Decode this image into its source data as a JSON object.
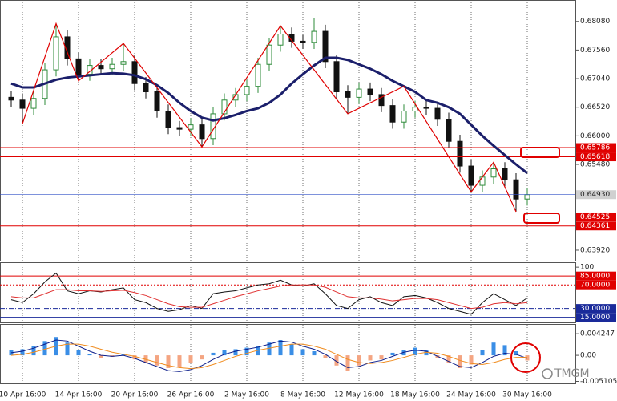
{
  "chart_data": [
    {
      "type": "candlestick",
      "categories": [
        null,
        "10 Apr 16:00",
        null,
        null,
        null,
        null,
        "14 Apr 16:00",
        null,
        null,
        null,
        null,
        "20 Apr 16:00",
        null,
        null,
        null,
        null,
        "26 Apr 16:00",
        null,
        null,
        null,
        null,
        "2 May 16:00",
        null,
        null,
        null,
        null,
        "8 May 16:00",
        null,
        null,
        null,
        null,
        "12 May 16:00",
        null,
        null,
        null,
        null,
        "18 May 16:00",
        null,
        null,
        null,
        null,
        "24 May 16:00",
        null,
        null,
        null,
        null,
        "30 May 16:00"
      ],
      "open": [
        0.667,
        0.6665,
        0.665,
        0.6668,
        0.672,
        0.678,
        0.674,
        0.6712,
        0.6728,
        0.6722,
        0.673,
        0.6735,
        0.6695,
        0.668,
        0.6645,
        0.6615,
        0.6612,
        0.662,
        0.6595,
        0.664,
        0.6665,
        0.6675,
        0.669,
        0.673,
        0.6765,
        0.6785,
        0.6772,
        0.677,
        0.679,
        0.6735,
        0.668,
        0.667,
        0.6685,
        0.6675,
        0.6655,
        0.6625,
        0.6645,
        0.6652,
        0.665,
        0.663,
        0.659,
        0.6545,
        0.651,
        0.6525,
        0.654,
        0.652,
        0.6485
      ],
      "high": [
        0.6682,
        0.6677,
        0.668,
        0.6732,
        0.6804,
        0.6792,
        0.6752,
        0.674,
        0.674,
        0.6742,
        0.6768,
        0.6747,
        0.6707,
        0.6692,
        0.6657,
        0.6627,
        0.6632,
        0.6632,
        0.6652,
        0.6677,
        0.6687,
        0.6702,
        0.6742,
        0.6777,
        0.68,
        0.6797,
        0.6784,
        0.6814,
        0.6802,
        0.6747,
        0.6692,
        0.6697,
        0.6697,
        0.6687,
        0.6667,
        0.6657,
        0.6664,
        0.6664,
        0.6662,
        0.6642,
        0.6602,
        0.6557,
        0.6537,
        0.6552,
        0.6552,
        0.6532,
        0.6505
      ],
      "low": [
        0.6653,
        0.6622,
        0.6638,
        0.6656,
        0.6708,
        0.6728,
        0.67,
        0.67,
        0.671,
        0.671,
        0.6718,
        0.6683,
        0.6668,
        0.6633,
        0.6603,
        0.66,
        0.66,
        0.658,
        0.6583,
        0.6628,
        0.6653,
        0.6663,
        0.6678,
        0.6718,
        0.6753,
        0.676,
        0.6758,
        0.6758,
        0.6723,
        0.6668,
        0.664,
        0.6658,
        0.6663,
        0.6643,
        0.6613,
        0.6613,
        0.6633,
        0.6638,
        0.6618,
        0.6578,
        0.6533,
        0.6498,
        0.6498,
        0.6513,
        0.6508,
        0.6462,
        0.6473
      ],
      "close": [
        0.6665,
        0.665,
        0.6668,
        0.672,
        0.678,
        0.674,
        0.6712,
        0.6728,
        0.6722,
        0.673,
        0.6735,
        0.6695,
        0.668,
        0.6645,
        0.6615,
        0.6612,
        0.662,
        0.6595,
        0.664,
        0.6665,
        0.6675,
        0.669,
        0.673,
        0.6765,
        0.6785,
        0.6772,
        0.677,
        0.679,
        0.6735,
        0.668,
        0.667,
        0.6685,
        0.6675,
        0.6655,
        0.6625,
        0.6645,
        0.6652,
        0.665,
        0.663,
        0.659,
        0.6545,
        0.651,
        0.6525,
        0.654,
        0.652,
        0.6485,
        0.6493
      ],
      "up_color": "#2e8b3a",
      "down_color": "#111111",
      "series": [
        {
          "color": "#1b1f6b",
          "values": [
            0.6695,
            0.6688,
            0.6688,
            0.6695,
            0.6702,
            0.6706,
            0.6708,
            0.671,
            0.6712,
            0.6714,
            0.6713,
            0.671,
            0.6703,
            0.6692,
            0.6678,
            0.666,
            0.6645,
            0.6633,
            0.6628,
            0.6632,
            0.6638,
            0.6645,
            0.665,
            0.666,
            0.6675,
            0.6695,
            0.6712,
            0.6728,
            0.6742,
            0.6742,
            0.6738,
            0.673,
            0.6722,
            0.6712,
            0.67,
            0.669,
            0.668,
            0.6665,
            0.666,
            0.6652,
            0.664,
            0.662,
            0.66,
            0.6582,
            0.6565,
            0.6548,
            0.6532
          ]
        }
      ],
      "zigzag": {
        "color": "#e00000",
        "x": [
          1,
          4,
          6,
          10,
          17,
          24,
          30,
          35,
          41,
          43,
          45
        ],
        "values": [
          0.6622,
          0.6804,
          0.67,
          0.6768,
          0.658,
          0.68,
          0.664,
          0.669,
          0.6498,
          0.6552,
          0.6462
        ]
      },
      "levels": [
        {
          "value": 0.65786,
          "color": "#e00000"
        },
        {
          "value": 0.65618,
          "color": "#e00000"
        },
        {
          "value": 0.64525,
          "color": "#e00000"
        },
        {
          "value": 0.64361,
          "color": "#e00000"
        }
      ],
      "current": {
        "value": 0.6493,
        "label": "0.64930",
        "color": "#3050c8"
      },
      "ylim": [
        0.6373,
        0.6847
      ],
      "yticks": [
        {
          "value": 0.6808,
          "label": "0.68080"
        },
        {
          "value": 0.6756,
          "label": "0.67560"
        },
        {
          "value": 0.6704,
          "label": "0.67040"
        },
        {
          "value": 0.6652,
          "label": "0.66520"
        },
        {
          "value": 0.66,
          "label": "0.66000"
        },
        {
          "value": 0.6548,
          "label": "0.65480"
        },
        {
          "value": 0.6392,
          "label": "0.63920"
        }
      ],
      "vgrid": true
    },
    {
      "type": "line",
      "series": [
        {
          "color": "#111111",
          "values": [
            45,
            40,
            55,
            75,
            90,
            60,
            55,
            60,
            58,
            62,
            65,
            45,
            40,
            30,
            25,
            28,
            35,
            30,
            55,
            58,
            60,
            65,
            70,
            72,
            78,
            70,
            68,
            72,
            55,
            35,
            30,
            45,
            50,
            40,
            35,
            50,
            52,
            48,
            40,
            30,
            25,
            20,
            40,
            55,
            45,
            35,
            48
          ]
        },
        {
          "color": "#e03030",
          "values": [
            50,
            48,
            48,
            55,
            62,
            62,
            60,
            60,
            59,
            60,
            61,
            57,
            52,
            45,
            38,
            33,
            32,
            32,
            38,
            44,
            50,
            55,
            60,
            64,
            68,
            70,
            70,
            70,
            66,
            58,
            50,
            48,
            48,
            46,
            43,
            45,
            47,
            47,
            45,
            40,
            35,
            30,
            32,
            38,
            40,
            38,
            40
          ]
        }
      ],
      "ylim": [
        5,
        107
      ],
      "yticks": [
        100
      ],
      "levels": [
        {
          "value": 85,
          "label": "85.0000",
          "color": "#e00000",
          "style": "solid"
        },
        {
          "value": 70,
          "label": "70.0000",
          "color": "#e00000",
          "style": "dotted"
        },
        {
          "value": 30,
          "label": "30.0000",
          "color": "#1a2a9a",
          "style": "dashdot"
        },
        {
          "value": 15,
          "label": "15.0000",
          "color": "#1a2a9a",
          "style": "solid"
        }
      ]
    },
    {
      "type": "bar",
      "values": [
        0.001,
        0.0012,
        0.0018,
        0.0028,
        0.0036,
        0.0025,
        0.001,
        0.0002,
        -0.0005,
        -0.0003,
        0.0002,
        -0.0008,
        -0.0015,
        -0.002,
        -0.0025,
        -0.0022,
        -0.0015,
        -0.0008,
        0.0005,
        0.001,
        0.0012,
        0.0015,
        0.0018,
        0.0025,
        0.003,
        0.0022,
        0.0012,
        0.0008,
        -0.0005,
        -0.002,
        -0.003,
        -0.002,
        -0.001,
        -0.0008,
        0.0005,
        0.001,
        0.0015,
        0.001,
        -0.0005,
        -0.0015,
        -0.0025,
        -0.0018,
        0.001,
        0.0025,
        0.002,
        0.0008,
        -0.001
      ],
      "color": "#3a8ee6",
      "negative_color": "#f4a582",
      "series": [
        {
          "color": "#0b1d8a",
          "values": [
            0.0005,
            0.0008,
            0.0014,
            0.0022,
            0.003,
            0.0028,
            0.0018,
            0.0008,
            0.0,
            -0.0002,
            0.0,
            -0.0006,
            -0.0014,
            -0.0022,
            -0.003,
            -0.0032,
            -0.0028,
            -0.002,
            -0.0008,
            0.0002,
            0.0008,
            0.0012,
            0.0016,
            0.0022,
            0.0028,
            0.0026,
            0.0018,
            0.0012,
            0.0002,
            -0.0012,
            -0.0024,
            -0.0022,
            -0.0014,
            -0.001,
            -0.0002,
            0.0006,
            0.001,
            0.0008,
            -0.0002,
            -0.0012,
            -0.0022,
            -0.0024,
            -0.0014,
            -0.0002,
            0.0004,
            0.0002,
            -0.0006
          ]
        },
        {
          "color": "#f08c1e",
          "values": [
            0.0,
            0.0002,
            0.0006,
            0.0012,
            0.0018,
            0.0022,
            0.0022,
            0.0018,
            0.0012,
            0.0006,
            0.0002,
            -0.0002,
            -0.0008,
            -0.0014,
            -0.002,
            -0.0024,
            -0.0026,
            -0.0024,
            -0.0018,
            -0.001,
            -0.0002,
            0.0004,
            0.001,
            0.0014,
            0.0018,
            0.0022,
            0.0022,
            0.0018,
            0.0012,
            0.0002,
            -0.0008,
            -0.0014,
            -0.0016,
            -0.0014,
            -0.001,
            -0.0004,
            0.0002,
            0.0006,
            0.0004,
            -0.0002,
            -0.001,
            -0.0016,
            -0.0018,
            -0.0014,
            -0.0008,
            -0.0004,
            -0.0004
          ]
        }
      ],
      "ylim": [
        -0.0055,
        0.006
      ],
      "yticks": [
        0.004247,
        {
          "value": 0,
          "label": "0.00"
        },
        -0.005105
      ]
    }
  ],
  "watermark": "TMGM"
}
